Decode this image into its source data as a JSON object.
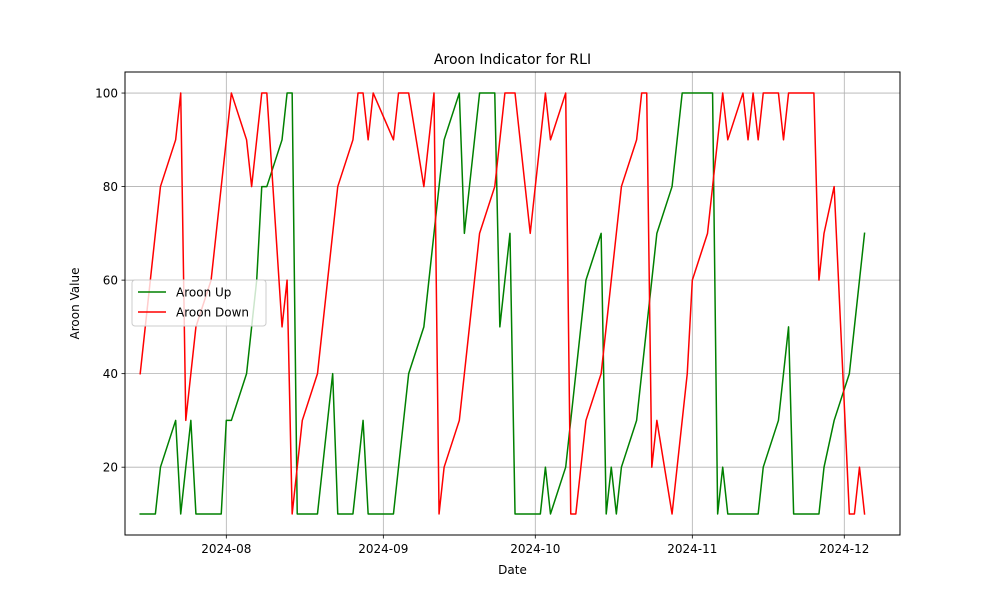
{
  "chart_data": {
    "type": "line",
    "title": "Aroon Indicator for RLI",
    "xlabel": "Date",
    "ylabel": "Aroon Value",
    "x_tick_labels": [
      "2024-08",
      "2024-09",
      "2024-10",
      "2024-11",
      "2024-12"
    ],
    "x_tick_dates": [
      "2024-08-01",
      "2024-09-01",
      "2024-10-01",
      "2024-11-01",
      "2024-12-01"
    ],
    "xlim": [
      "2024-07-12",
      "2024-12-12"
    ],
    "y_ticks": [
      20,
      40,
      60,
      80,
      100
    ],
    "ylim": [
      5.5,
      104.5
    ],
    "grid": true,
    "legend_position": "center-left",
    "series": [
      {
        "name": "Aroon Up",
        "color": "#008000",
        "points": [
          [
            "2024-07-15",
            10
          ],
          [
            "2024-07-16",
            10
          ],
          [
            "2024-07-17",
            10
          ],
          [
            "2024-07-18",
            10
          ],
          [
            "2024-07-19",
            20
          ],
          [
            "2024-07-22",
            30
          ],
          [
            "2024-07-23",
            10
          ],
          [
            "2024-07-24",
            20
          ],
          [
            "2024-07-25",
            30
          ],
          [
            "2024-07-26",
            10
          ],
          [
            "2024-07-29",
            10
          ],
          [
            "2024-07-30",
            10
          ],
          [
            "2024-07-31",
            10
          ],
          [
            "2024-08-01",
            30
          ],
          [
            "2024-08-02",
            30
          ],
          [
            "2024-08-05",
            40
          ],
          [
            "2024-08-06",
            50
          ],
          [
            "2024-08-07",
            60
          ],
          [
            "2024-08-08",
            80
          ],
          [
            "2024-08-09",
            80
          ],
          [
            "2024-08-12",
            90
          ],
          [
            "2024-08-13",
            100
          ],
          [
            "2024-08-14",
            100
          ],
          [
            "2024-08-15",
            10
          ],
          [
            "2024-08-16",
            10
          ],
          [
            "2024-08-19",
            10
          ],
          [
            "2024-08-20",
            20
          ],
          [
            "2024-08-21",
            30
          ],
          [
            "2024-08-22",
            40
          ],
          [
            "2024-08-23",
            10
          ],
          [
            "2024-08-26",
            10
          ],
          [
            "2024-08-27",
            20
          ],
          [
            "2024-08-28",
            30
          ],
          [
            "2024-08-29",
            10
          ],
          [
            "2024-08-30",
            10
          ],
          [
            "2024-09-03",
            10
          ],
          [
            "2024-09-04",
            20
          ],
          [
            "2024-09-05",
            30
          ],
          [
            "2024-09-06",
            40
          ],
          [
            "2024-09-09",
            50
          ],
          [
            "2024-09-10",
            60
          ],
          [
            "2024-09-11",
            70
          ],
          [
            "2024-09-12",
            80
          ],
          [
            "2024-09-13",
            90
          ],
          [
            "2024-09-16",
            100
          ],
          [
            "2024-09-17",
            70
          ],
          [
            "2024-09-18",
            80
          ],
          [
            "2024-09-19",
            90
          ],
          [
            "2024-09-20",
            100
          ],
          [
            "2024-09-23",
            100
          ],
          [
            "2024-09-24",
            50
          ],
          [
            "2024-09-25",
            60
          ],
          [
            "2024-09-26",
            70
          ],
          [
            "2024-09-27",
            10
          ],
          [
            "2024-09-30",
            10
          ],
          [
            "2024-10-01",
            10
          ],
          [
            "2024-10-02",
            10
          ],
          [
            "2024-10-03",
            20
          ],
          [
            "2024-10-04",
            10
          ],
          [
            "2024-10-07",
            20
          ],
          [
            "2024-10-08",
            30
          ],
          [
            "2024-10-09",
            40
          ],
          [
            "2024-10-10",
            50
          ],
          [
            "2024-10-11",
            60
          ],
          [
            "2024-10-14",
            70
          ],
          [
            "2024-10-15",
            10
          ],
          [
            "2024-10-16",
            20
          ],
          [
            "2024-10-17",
            10
          ],
          [
            "2024-10-18",
            20
          ],
          [
            "2024-10-21",
            30
          ],
          [
            "2024-10-22",
            40
          ],
          [
            "2024-10-23",
            50
          ],
          [
            "2024-10-24",
            60
          ],
          [
            "2024-10-25",
            70
          ],
          [
            "2024-10-28",
            80
          ],
          [
            "2024-10-29",
            90
          ],
          [
            "2024-10-30",
            100
          ],
          [
            "2024-10-31",
            100
          ],
          [
            "2024-11-01",
            100
          ],
          [
            "2024-11-04",
            100
          ],
          [
            "2024-11-05",
            100
          ],
          [
            "2024-11-06",
            10
          ],
          [
            "2024-11-07",
            20
          ],
          [
            "2024-11-08",
            10
          ],
          [
            "2024-11-11",
            10
          ],
          [
            "2024-11-12",
            10
          ],
          [
            "2024-11-13",
            10
          ],
          [
            "2024-11-14",
            10
          ],
          [
            "2024-11-15",
            20
          ],
          [
            "2024-11-18",
            30
          ],
          [
            "2024-11-19",
            40
          ],
          [
            "2024-11-20",
            50
          ],
          [
            "2024-11-21",
            10
          ],
          [
            "2024-11-22",
            10
          ],
          [
            "2024-11-25",
            10
          ],
          [
            "2024-11-26",
            10
          ],
          [
            "2024-11-27",
            20
          ],
          [
            "2024-11-29",
            30
          ],
          [
            "2024-12-02",
            40
          ],
          [
            "2024-12-03",
            50
          ],
          [
            "2024-12-04",
            60
          ],
          [
            "2024-12-05",
            70
          ]
        ]
      },
      {
        "name": "Aroon Down",
        "color": "#ff0000",
        "points": [
          [
            "2024-07-15",
            40
          ],
          [
            "2024-07-16",
            50
          ],
          [
            "2024-07-17",
            60
          ],
          [
            "2024-07-18",
            70
          ],
          [
            "2024-07-19",
            80
          ],
          [
            "2024-07-22",
            90
          ],
          [
            "2024-07-23",
            100
          ],
          [
            "2024-07-24",
            30
          ],
          [
            "2024-07-25",
            40
          ],
          [
            "2024-07-26",
            50
          ],
          [
            "2024-07-29",
            60
          ],
          [
            "2024-07-30",
            70
          ],
          [
            "2024-07-31",
            80
          ],
          [
            "2024-08-01",
            90
          ],
          [
            "2024-08-02",
            100
          ],
          [
            "2024-08-05",
            90
          ],
          [
            "2024-08-06",
            80
          ],
          [
            "2024-08-07",
            90
          ],
          [
            "2024-08-08",
            100
          ],
          [
            "2024-08-09",
            100
          ],
          [
            "2024-08-12",
            50
          ],
          [
            "2024-08-13",
            60
          ],
          [
            "2024-08-14",
            10
          ],
          [
            "2024-08-15",
            20
          ],
          [
            "2024-08-16",
            30
          ],
          [
            "2024-08-19",
            40
          ],
          [
            "2024-08-20",
            50
          ],
          [
            "2024-08-21",
            60
          ],
          [
            "2024-08-22",
            70
          ],
          [
            "2024-08-23",
            80
          ],
          [
            "2024-08-26",
            90
          ],
          [
            "2024-08-27",
            100
          ],
          [
            "2024-08-28",
            100
          ],
          [
            "2024-08-29",
            90
          ],
          [
            "2024-08-30",
            100
          ],
          [
            "2024-09-03",
            90
          ],
          [
            "2024-09-04",
            100
          ],
          [
            "2024-09-05",
            100
          ],
          [
            "2024-09-06",
            100
          ],
          [
            "2024-09-09",
            80
          ],
          [
            "2024-09-10",
            90
          ],
          [
            "2024-09-11",
            100
          ],
          [
            "2024-09-12",
            10
          ],
          [
            "2024-09-13",
            20
          ],
          [
            "2024-09-16",
            30
          ],
          [
            "2024-09-17",
            40
          ],
          [
            "2024-09-18",
            50
          ],
          [
            "2024-09-19",
            60
          ],
          [
            "2024-09-20",
            70
          ],
          [
            "2024-09-23",
            80
          ],
          [
            "2024-09-24",
            90
          ],
          [
            "2024-09-25",
            100
          ],
          [
            "2024-09-26",
            100
          ],
          [
            "2024-09-27",
            100
          ],
          [
            "2024-09-30",
            70
          ],
          [
            "2024-10-01",
            80
          ],
          [
            "2024-10-02",
            90
          ],
          [
            "2024-10-03",
            100
          ],
          [
            "2024-10-04",
            90
          ],
          [
            "2024-10-07",
            100
          ],
          [
            "2024-10-08",
            10
          ],
          [
            "2024-10-09",
            10
          ],
          [
            "2024-10-10",
            20
          ],
          [
            "2024-10-11",
            30
          ],
          [
            "2024-10-14",
            40
          ],
          [
            "2024-10-15",
            50
          ],
          [
            "2024-10-16",
            60
          ],
          [
            "2024-10-17",
            70
          ],
          [
            "2024-10-18",
            80
          ],
          [
            "2024-10-21",
            90
          ],
          [
            "2024-10-22",
            100
          ],
          [
            "2024-10-23",
            100
          ],
          [
            "2024-10-24",
            20
          ],
          [
            "2024-10-25",
            30
          ],
          [
            "2024-10-28",
            10
          ],
          [
            "2024-10-29",
            20
          ],
          [
            "2024-10-30",
            30
          ],
          [
            "2024-10-31",
            40
          ],
          [
            "2024-11-01",
            60
          ],
          [
            "2024-11-04",
            70
          ],
          [
            "2024-11-05",
            80
          ],
          [
            "2024-11-06",
            90
          ],
          [
            "2024-11-07",
            100
          ],
          [
            "2024-11-08",
            90
          ],
          [
            "2024-11-11",
            100
          ],
          [
            "2024-11-12",
            90
          ],
          [
            "2024-11-13",
            100
          ],
          [
            "2024-11-14",
            90
          ],
          [
            "2024-11-15",
            100
          ],
          [
            "2024-11-18",
            100
          ],
          [
            "2024-11-19",
            90
          ],
          [
            "2024-11-20",
            100
          ],
          [
            "2024-11-21",
            100
          ],
          [
            "2024-11-22",
            100
          ],
          [
            "2024-11-25",
            100
          ],
          [
            "2024-11-26",
            60
          ],
          [
            "2024-11-27",
            70
          ],
          [
            "2024-11-29",
            80
          ],
          [
            "2024-12-02",
            10
          ],
          [
            "2024-12-03",
            10
          ],
          [
            "2024-12-04",
            20
          ],
          [
            "2024-12-05",
            10
          ]
        ]
      }
    ]
  }
}
